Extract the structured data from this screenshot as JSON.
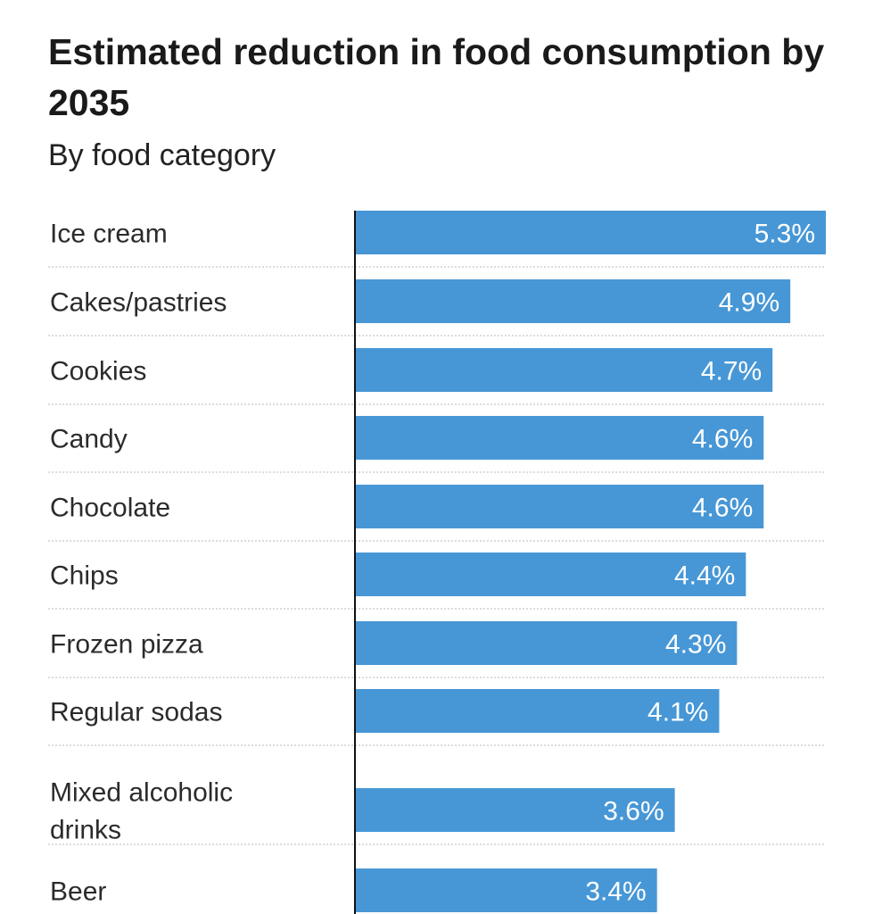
{
  "header": {
    "title": "Estimated reduction in food consumption by 2035",
    "subtitle": "By food category"
  },
  "colors": {
    "bar": "#4797d6",
    "axis": "#111111",
    "separator": "#c8c8c8"
  },
  "chart_data": {
    "type": "bar",
    "orientation": "horizontal",
    "title": "Estimated reduction in food consumption by 2035",
    "subtitle": "By food category",
    "xlabel": "",
    "ylabel": "",
    "xlim": [
      0,
      5.3
    ],
    "grid": false,
    "categories": [
      "Ice cream",
      "Cakes/pastries",
      "Cookies",
      "Candy",
      "Chocolate",
      "Chips",
      "Frozen pizza",
      "Regular sodas",
      "Mixed alcoholic drinks",
      "Beer"
    ],
    "category_lines": [
      [
        "Ice cream"
      ],
      [
        "Cakes/pastries"
      ],
      [
        "Cookies"
      ],
      [
        "Candy"
      ],
      [
        "Chocolate"
      ],
      [
        "Chips"
      ],
      [
        "Frozen pizza"
      ],
      [
        "Regular sodas"
      ],
      [
        "Mixed alcoholic",
        "drinks"
      ],
      [
        "Beer"
      ]
    ],
    "values": [
      5.3,
      4.9,
      4.7,
      4.6,
      4.6,
      4.4,
      4.3,
      4.1,
      3.6,
      3.4
    ],
    "value_labels": [
      "5.3%",
      "4.9%",
      "4.7%",
      "4.6%",
      "4.6%",
      "4.4%",
      "4.3%",
      "4.1%",
      "3.6%",
      "3.4%"
    ],
    "unit": "%"
  }
}
